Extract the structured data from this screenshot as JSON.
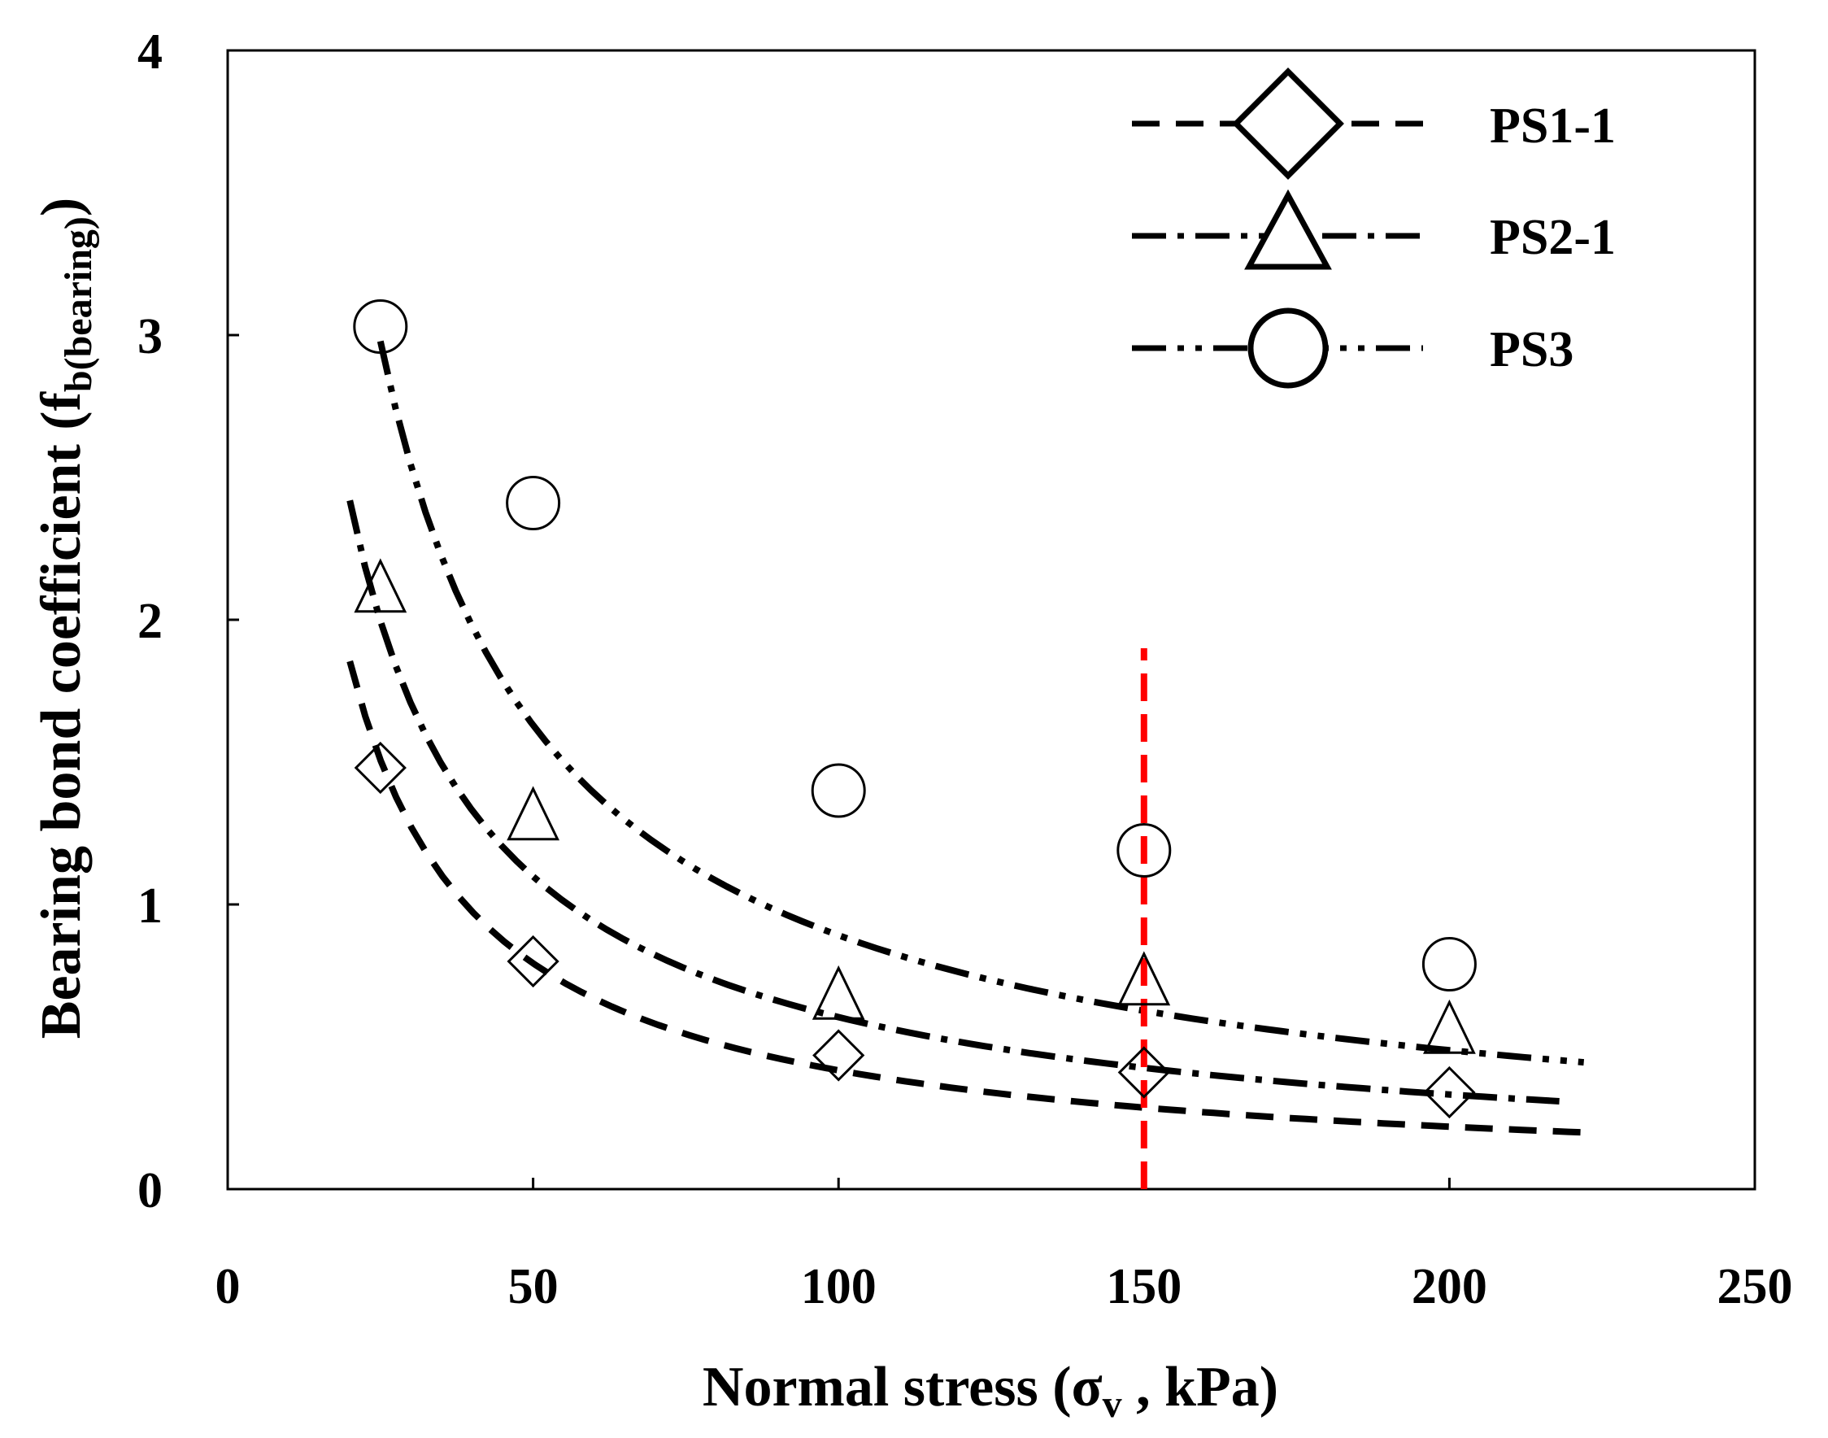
{
  "chart_data": {
    "type": "scatter",
    "title": "",
    "xlabel": {
      "main": "Normal stress (σ",
      "sub": "v",
      "tail": " , kPa)"
    },
    "ylabel": {
      "main": "Bearing bond coefficient (f",
      "sub": "b(bearing)",
      "tail": ")"
    },
    "xlim": [
      0,
      250
    ],
    "ylim": [
      0,
      4
    ],
    "xticks": [
      "0",
      "50",
      "100",
      "150",
      "200",
      "250"
    ],
    "yticks": [
      "0",
      "1",
      "2",
      "3",
      "4"
    ],
    "grid": false,
    "legend_position": "top-right",
    "series": [
      {
        "name": "PS1-1",
        "marker": "diamond",
        "line": "dashed",
        "x": [
          25,
          50,
          100,
          150,
          200
        ],
        "y": [
          1.48,
          0.8,
          0.47,
          0.41,
          0.34
        ],
        "trend": {
          "a": 29.8,
          "b": -0.927,
          "x_range": [
            20,
            222
          ]
        }
      },
      {
        "name": "PS2-1",
        "marker": "triangle",
        "line": "dash-dot",
        "x": [
          25,
          50,
          100,
          150,
          200
        ],
        "y": [
          2.1,
          1.3,
          0.67,
          0.72,
          0.55
        ],
        "trend": {
          "a": 32.0,
          "b": -0.862,
          "x_range": [
            20,
            218
          ]
        }
      },
      {
        "name": "PS3",
        "marker": "circle",
        "line": "dash-dot-dot",
        "x": [
          25,
          50,
          100,
          150,
          200
        ],
        "y": [
          3.03,
          2.41,
          1.4,
          1.19,
          0.79
        ],
        "trend": {
          "a": 49.0,
          "b": -0.87,
          "x_range": [
            25,
            222
          ]
        }
      }
    ],
    "reference_line": {
      "x": 150,
      "y_range": [
        0,
        1.9
      ],
      "color": "#ff0000",
      "style": "dashed"
    }
  }
}
